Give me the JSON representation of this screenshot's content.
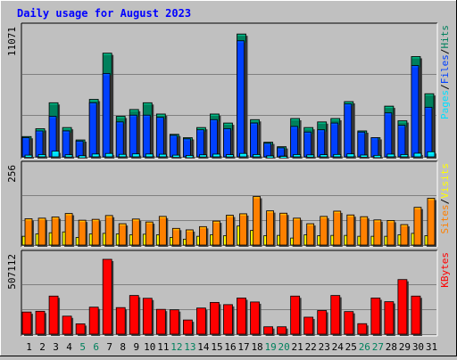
{
  "colors": {
    "background": "#C0C0C0",
    "title": "#0000FF",
    "gridline": "#808080",
    "hits": "#00805C",
    "files": "#0040FF",
    "pages": "#00E0FF",
    "visits": "#FFFF00",
    "sites": "#FF8000",
    "kbytes": "#FF0000",
    "weekend_label": "#00805C",
    "weekday_label": "#000000"
  },
  "chart_data": {
    "type": "bar",
    "title": "Daily usage for August 2023",
    "categories": [
      "1",
      "2",
      "3",
      "4",
      "5",
      "6",
      "7",
      "8",
      "9",
      "10",
      "11",
      "12",
      "13",
      "14",
      "15",
      "16",
      "17",
      "18",
      "19",
      "20",
      "21",
      "22",
      "23",
      "24",
      "25",
      "26",
      "27",
      "28",
      "29",
      "30",
      "31"
    ],
    "weekend_days": [
      "5",
      "6",
      "12",
      "13",
      "19",
      "20",
      "26",
      "27"
    ],
    "panels": [
      {
        "id": "hits_files_pages",
        "max_label": "11071",
        "ylim": [
          0,
          11071
        ],
        "grid": true,
        "legend": [
          "Pages",
          "/",
          "Files",
          "/",
          "Hits"
        ],
        "series": [
          {
            "name": "Hits",
            "values": [
              1800,
              2500,
              4800,
              2600,
              1500,
              5100,
              9200,
              3600,
              4200,
              4800,
              3800,
              2000,
              1700,
              2600,
              3800,
              3000,
              10900,
              3300,
              1300,
              900,
              3400,
              2600,
              3100,
              3400,
              4900,
              2300,
              1700,
              4500,
              3200,
              8900,
              5600
            ]
          },
          {
            "name": "Files",
            "values": [
              1700,
              2300,
              3600,
              2300,
              1400,
              4800,
              7400,
              3100,
              3700,
              3700,
              3500,
              1900,
              1600,
              2400,
              3300,
              2500,
              10300,
              3000,
              1200,
              800,
              2700,
              2200,
              2400,
              3000,
              4700,
              2200,
              1700,
              3900,
              2800,
              8100,
              4400
            ]
          },
          {
            "name": "Pages",
            "values": [
              150,
              200,
              500,
              180,
              100,
              250,
              300,
              220,
              260,
              250,
              230,
              150,
              120,
              180,
              240,
              190,
              300,
              200,
              90,
              70,
              200,
              170,
              190,
              210,
              260,
              160,
              130,
              240,
              200,
              320,
              450
            ]
          }
        ]
      },
      {
        "id": "sites_visits",
        "max_label": "256",
        "ylim": [
          0,
          256
        ],
        "grid": true,
        "legend": [
          "Sites",
          "/",
          "Visits"
        ],
        "series": [
          {
            "name": "Visits",
            "values": [
              30,
              38,
              42,
              45,
              26,
              38,
              40,
              38,
              35,
              37,
              35,
              26,
              20,
              30,
              35,
              32,
              65,
              50,
              32,
              33,
              24,
              35,
              32,
              33,
              33,
              30,
              30,
              30,
              35,
              40,
              32
            ]
          },
          {
            "name": "Sites",
            "values": [
              90,
              92,
              96,
              108,
              85,
              88,
              101,
              73,
              89,
              79,
              98,
              57,
              52,
              63,
              82,
              102,
              107,
              166,
              117,
              109,
              92,
              73,
              98,
              116,
              103,
              97,
              86,
              84,
              70,
              129,
              160
            ]
          }
        ]
      },
      {
        "id": "kbytes",
        "max_label": "507112",
        "ylim": [
          0,
          507112
        ],
        "grid": true,
        "legend": [
          "KBytes"
        ],
        "series": [
          {
            "name": "KBytes",
            "values": [
              150000,
              155000,
              258000,
              122000,
              70000,
              183000,
              507112,
              180000,
              262000,
              243000,
              168000,
              165000,
              96000,
              177000,
              215000,
              200000,
              245000,
              218000,
              50000,
              50000,
              258000,
              115000,
              160000,
              262000,
              153000,
              71000,
              245000,
              220000,
              370000,
              258000,
              0
            ]
          }
        ]
      }
    ]
  }
}
